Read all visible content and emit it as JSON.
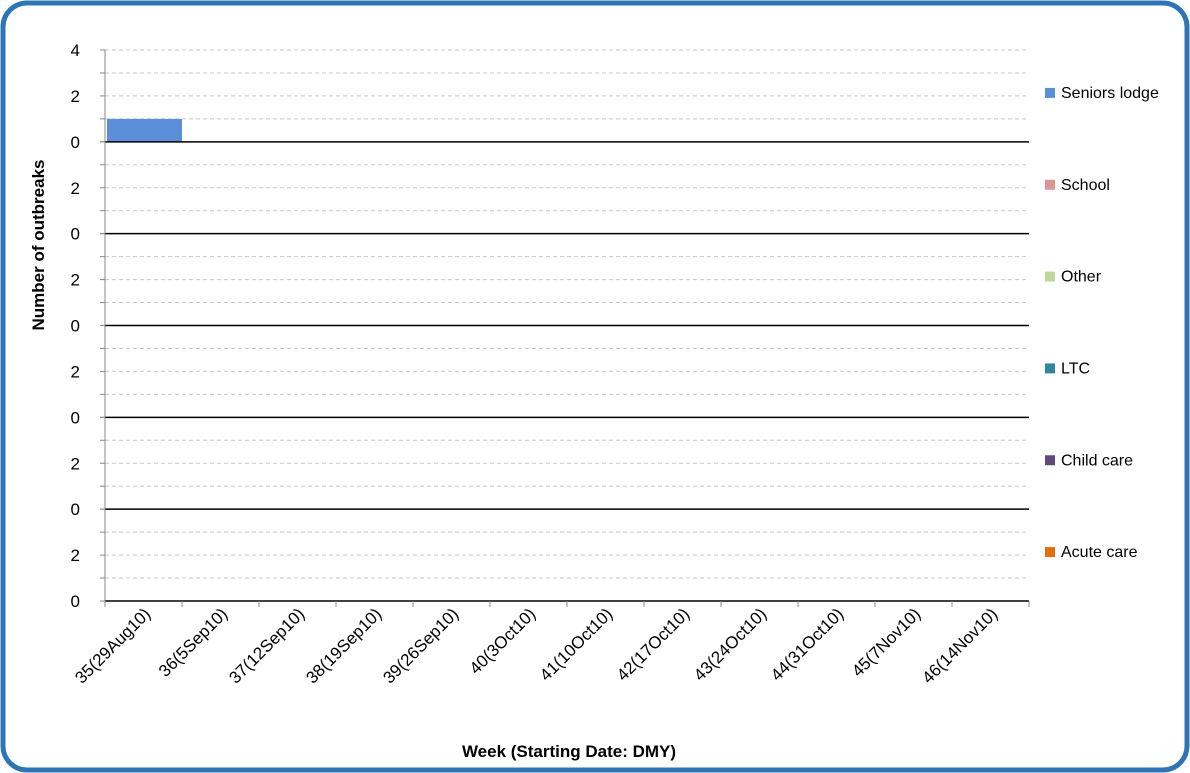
{
  "chart_data": {
    "type": "bar",
    "layout": "stacked-panels",
    "xlabel": "Week (Starting Date: DMY)",
    "ylabel": "Number of outbreaks",
    "categories": [
      "35(29Aug10)",
      "36(5Sep10)",
      "37(12Sep10)",
      "38(19Sep10)",
      "39(26Sep10)",
      "40(3Oct10)",
      "41(10Oct10)",
      "42(17Oct10)",
      "43(24Oct10)",
      "44(31Oct10)",
      "45(7Nov10)",
      "46(14Nov10)"
    ],
    "panel_ylim": [
      0,
      4
    ],
    "panel_ticks": [
      "0",
      "2",
      "4"
    ],
    "series": [
      {
        "name": "Seniors lodge",
        "color": "#5b8fd9",
        "values": [
          1,
          0,
          0,
          0,
          0,
          0,
          0,
          0,
          0,
          0,
          0,
          0
        ]
      },
      {
        "name": "School",
        "color": "#d99694",
        "values": [
          0,
          0,
          0,
          0,
          0,
          0,
          0,
          0,
          0,
          0,
          0,
          0
        ]
      },
      {
        "name": "Other",
        "color": "#c3d69b",
        "values": [
          0,
          0,
          0,
          0,
          0,
          0,
          0,
          0,
          0,
          0,
          0,
          0
        ]
      },
      {
        "name": "LTC",
        "color": "#31859c",
        "values": [
          0,
          0,
          0,
          0,
          0,
          0,
          0,
          0,
          0,
          0,
          0,
          0
        ]
      },
      {
        "name": "Child care",
        "color": "#604a7b",
        "values": [
          0,
          0,
          0,
          0,
          0,
          0,
          0,
          0,
          0,
          0,
          0,
          0
        ]
      },
      {
        "name": "Acute care",
        "color": "#e46c0a",
        "values": [
          0,
          0,
          0,
          0,
          0,
          0,
          0,
          0,
          0,
          0,
          0,
          0
        ]
      }
    ],
    "grid": true,
    "legend_position": "right"
  },
  "colors": {
    "frame_border": "#2e75b6",
    "grid": "#c8c8c8",
    "baseline": "#000000",
    "text": "#000000"
  }
}
